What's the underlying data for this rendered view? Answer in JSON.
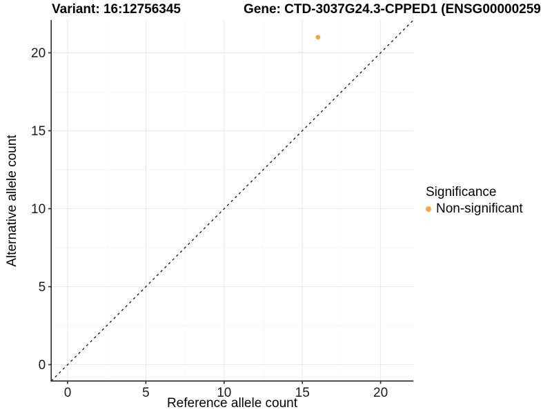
{
  "titles": {
    "variant": "Variant: 16:12756345",
    "gene": "Gene: CTD-3037G24.3-CPPED1 (ENSG00000259"
  },
  "chart_data": {
    "type": "scatter",
    "xlabel": "Reference allele count",
    "ylabel": "Alternative allele count",
    "xlim": [
      -1.05,
      22.1
    ],
    "ylim": [
      -1.05,
      22.1
    ],
    "x_ticks": [
      0,
      5,
      10,
      15,
      20
    ],
    "y_ticks": [
      0,
      5,
      10,
      15,
      20
    ],
    "x_minor_ticks": [
      2.5,
      7.5,
      12.5,
      17.5
    ],
    "y_minor_ticks": [
      2.5,
      7.5,
      12.5,
      17.5
    ],
    "grid": "major+minor on white background",
    "identity_line": {
      "style": "dashed",
      "slope": 1,
      "intercept": 0,
      "color": "#111111"
    },
    "series": [
      {
        "name": "Non-significant",
        "color": "#F8A33E",
        "points": [
          {
            "x": 16,
            "y": 21
          }
        ]
      }
    ],
    "legend": {
      "position": "right",
      "title": "Significance",
      "items": [
        {
          "label": "Non-significant",
          "color": "#F8A33E"
        }
      ]
    },
    "colors": {
      "grid_major": "#E9E9E9",
      "grid_minor": "#F5F5F5",
      "axis_line": "#2B2B2B",
      "tick_label": "#1A1A1A"
    }
  }
}
